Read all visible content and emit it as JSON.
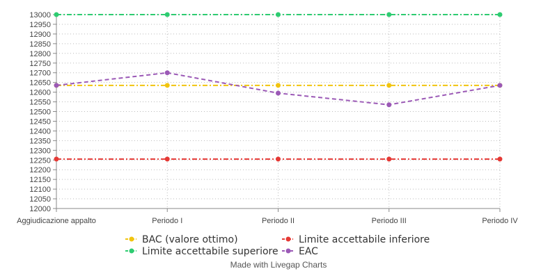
{
  "chart_data": {
    "type": "line",
    "categories": [
      "Aggiudicazione appalto",
      "Periodo I",
      "Periodo II",
      "Periodo III",
      "Periodo IV"
    ],
    "series": [
      {
        "name": "BAC (valore ottimo)",
        "values": [
          12635,
          12635,
          12635,
          12635,
          12635
        ],
        "color": "#f1c40f",
        "dash": "dash-dot"
      },
      {
        "name": "Limite accettabile inferiore",
        "values": [
          12255,
          12255,
          12255,
          12255,
          12255
        ],
        "color": "#e53935",
        "dash": "dash-dot"
      },
      {
        "name": "Limite accettabile superiore",
        "values": [
          13000,
          13000,
          13000,
          13000,
          13000
        ],
        "color": "#2ecc71",
        "dash": "dash-dot"
      },
      {
        "name": "EAC",
        "values": [
          12635,
          12700,
          12595,
          12535,
          12635
        ],
        "color": "#9b59b6",
        "dash": "dash"
      }
    ],
    "ylim": [
      12000,
      13000
    ],
    "yticks": [
      12000,
      12050,
      12100,
      12150,
      12200,
      12250,
      12300,
      12350,
      12400,
      12450,
      12500,
      12550,
      12600,
      12650,
      12700,
      12750,
      12800,
      12850,
      12900,
      12950,
      13000
    ],
    "grid": true,
    "legend_position": "bottom-center",
    "title": "",
    "xlabel": "",
    "ylabel": ""
  },
  "credit": "Made with Livegap Charts"
}
